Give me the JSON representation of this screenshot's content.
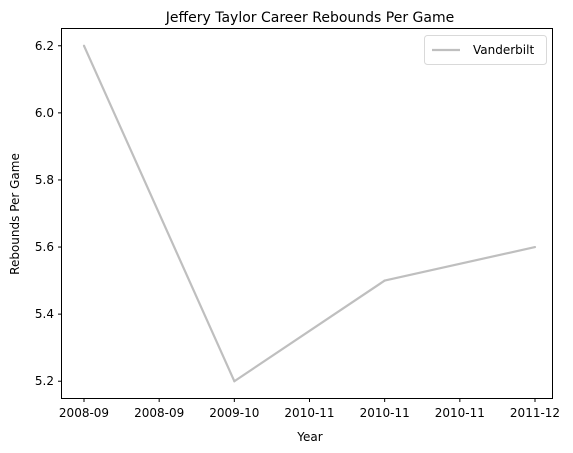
{
  "chart_data": {
    "type": "line",
    "title": "Jeffery Taylor Career Rebounds Per Game",
    "xlabel": "Year",
    "ylabel": "Rebounds Per Game",
    "x_tick_labels": [
      "2008-09",
      "2008-09",
      "2009-10",
      "2010-11",
      "2010-11",
      "2010-11",
      "2011-12"
    ],
    "y_ticks": [
      5.2,
      5.4,
      5.6,
      5.8,
      6.0,
      6.2
    ],
    "ylim": [
      5.15,
      6.25
    ],
    "grid": false,
    "legend_position": "top-right",
    "series": [
      {
        "name": "Vanderbilt",
        "color": "#bfbfbf",
        "points": [
          {
            "x_index": 0,
            "y": 6.2
          },
          {
            "x_index": 2,
            "y": 5.2
          },
          {
            "x_index": 4,
            "y": 5.5
          },
          {
            "x_index": 6,
            "y": 5.6
          }
        ]
      }
    ]
  }
}
